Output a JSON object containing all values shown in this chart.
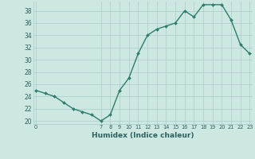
{
  "x": [
    0,
    1,
    2,
    3,
    4,
    5,
    6,
    7,
    8,
    9,
    10,
    11,
    12,
    13,
    14,
    15,
    16,
    17,
    18,
    19,
    20,
    21,
    22,
    23
  ],
  "y": [
    25,
    24.5,
    24,
    23,
    22,
    21.5,
    21,
    20,
    21,
    25,
    27,
    31,
    34,
    35,
    35.5,
    36,
    38,
    37,
    39,
    39,
    39,
    36.5,
    32.5,
    31
  ],
  "x_ticks": [
    0,
    7,
    8,
    9,
    10,
    11,
    12,
    13,
    14,
    15,
    16,
    17,
    18,
    19,
    20,
    21,
    22,
    23
  ],
  "x_tick_labels": [
    "0",
    "7",
    "8",
    "9",
    "10",
    "11",
    "12",
    "13",
    "14",
    "15",
    "16",
    "17",
    "18",
    "19",
    "20",
    "21",
    "22",
    "23"
  ],
  "y_ticks": [
    20,
    22,
    24,
    26,
    28,
    30,
    32,
    34,
    36,
    38
  ],
  "ylim": [
    19.5,
    39.5
  ],
  "xlim": [
    -0.3,
    23.3
  ],
  "line_color": "#2e7d6e",
  "marker_color": "#2e7d6e",
  "bg_color": "#cce8e0",
  "grid_color": "#aacccc",
  "xlabel": "Humidex (Indice chaleur)",
  "xlabel_color": "#2e6060",
  "tick_color": "#2e6060",
  "title": ""
}
